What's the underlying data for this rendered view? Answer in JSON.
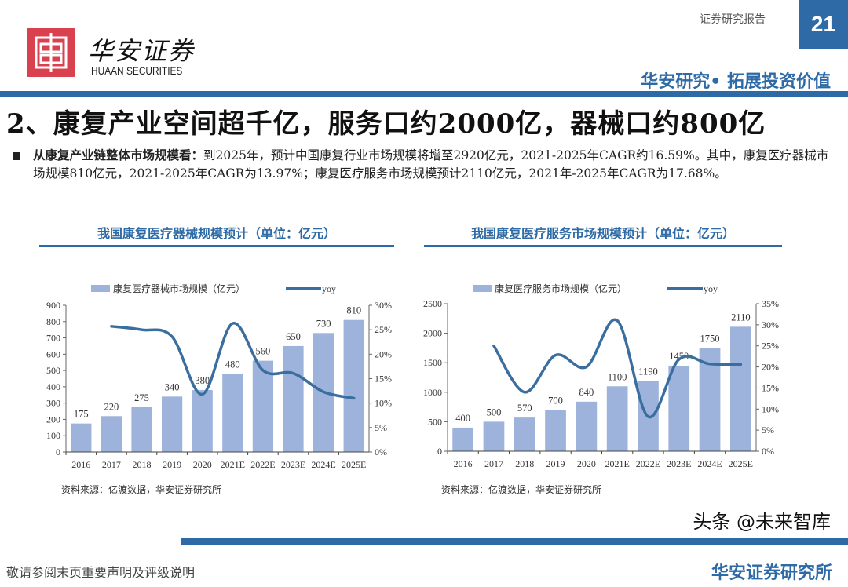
{
  "header": {
    "brand_cn": "华安证券",
    "brand_en": "HUAAN SECURITIES",
    "report_type": "证券研究报告",
    "page_number": "21",
    "slogan": "华安研究• 拓展投资价值"
  },
  "heading": "2、康复产业空间超千亿，服务口约2000亿，器械口约800亿",
  "paragraph": {
    "lead": "从康复产业链整体市场规模看：",
    "body": "到2025年，预计中国康复行业市场规模将增至2920亿元，2021-2025年CAGR约16.59%。其中，康复医疗器械市场规模810亿元，2021-2025年CAGR为13.97%；康复医疗服务市场规模预计2110亿元，2021年-2025年CAGR为17.68%。"
  },
  "colors": {
    "brand_blue": "#2e6aa6",
    "bar": "#9db3dc",
    "line": "#3a6e9e",
    "logo_red": "#d9414f"
  },
  "chart_data": [
    {
      "type": "bar+line",
      "title": "我国康复医疗器械规模预计（单位：亿元）",
      "categories": [
        "2016",
        "2017",
        "2018",
        "2019",
        "2020",
        "2021E",
        "2022E",
        "2023E",
        "2024E",
        "2025E"
      ],
      "series": [
        {
          "name": "康复医疗器械市场规模（亿元）",
          "type": "bar",
          "axis": "left",
          "values": [
            175,
            220,
            275,
            340,
            380,
            480,
            560,
            650,
            730,
            810
          ]
        },
        {
          "name": "yoy",
          "type": "line",
          "axis": "right",
          "values": [
            null,
            25.7,
            25.0,
            23.6,
            11.8,
            26.3,
            16.7,
            16.1,
            12.3,
            11.0
          ]
        }
      ],
      "left_axis": {
        "ylim": [
          0,
          900
        ],
        "ticks": [
          "0",
          "100",
          "200",
          "300",
          "400",
          "500",
          "600",
          "700",
          "800",
          "900"
        ]
      },
      "right_axis": {
        "ylim": [
          0,
          30
        ],
        "ticks": [
          "0%",
          "5%",
          "10%",
          "15%",
          "20%",
          "25%",
          "30%"
        ]
      },
      "legend": "top",
      "source": "资料来源：亿渡数据，华安证券研究所"
    },
    {
      "type": "bar+line",
      "title": "我国康复医疗服务市场规模预计（单位：亿元）",
      "categories": [
        "2016",
        "2017",
        "2018",
        "2019",
        "2020",
        "2021E",
        "2022E",
        "2023E",
        "2024E",
        "2025E"
      ],
      "series": [
        {
          "name": "康复医疗服务市场规模（亿元）",
          "type": "bar",
          "axis": "left",
          "values": [
            400,
            500,
            570,
            700,
            840,
            1100,
            1190,
            1450,
            1750,
            2110
          ]
        },
        {
          "name": "yoy",
          "type": "line",
          "axis": "right",
          "values": [
            null,
            25.0,
            14.0,
            22.8,
            20.0,
            31.0,
            8.2,
            21.8,
            20.7,
            20.6
          ]
        }
      ],
      "left_axis": {
        "ylim": [
          0,
          2500
        ],
        "ticks": [
          "0",
          "500",
          "1000",
          "1500",
          "2000",
          "2500"
        ]
      },
      "right_axis": {
        "ylim": [
          0,
          35
        ],
        "ticks": [
          "0%",
          "5%",
          "10%",
          "15%",
          "20%",
          "25%",
          "30%",
          "35%"
        ]
      },
      "legend": "top",
      "source": "资料来源：亿渡数据，华安证券研究所"
    }
  ],
  "footer": {
    "disclaimer": "敬请参阅末页重要声明及评级说明",
    "org": "华安证券研究所",
    "watermark": "头条 @未来智库"
  }
}
